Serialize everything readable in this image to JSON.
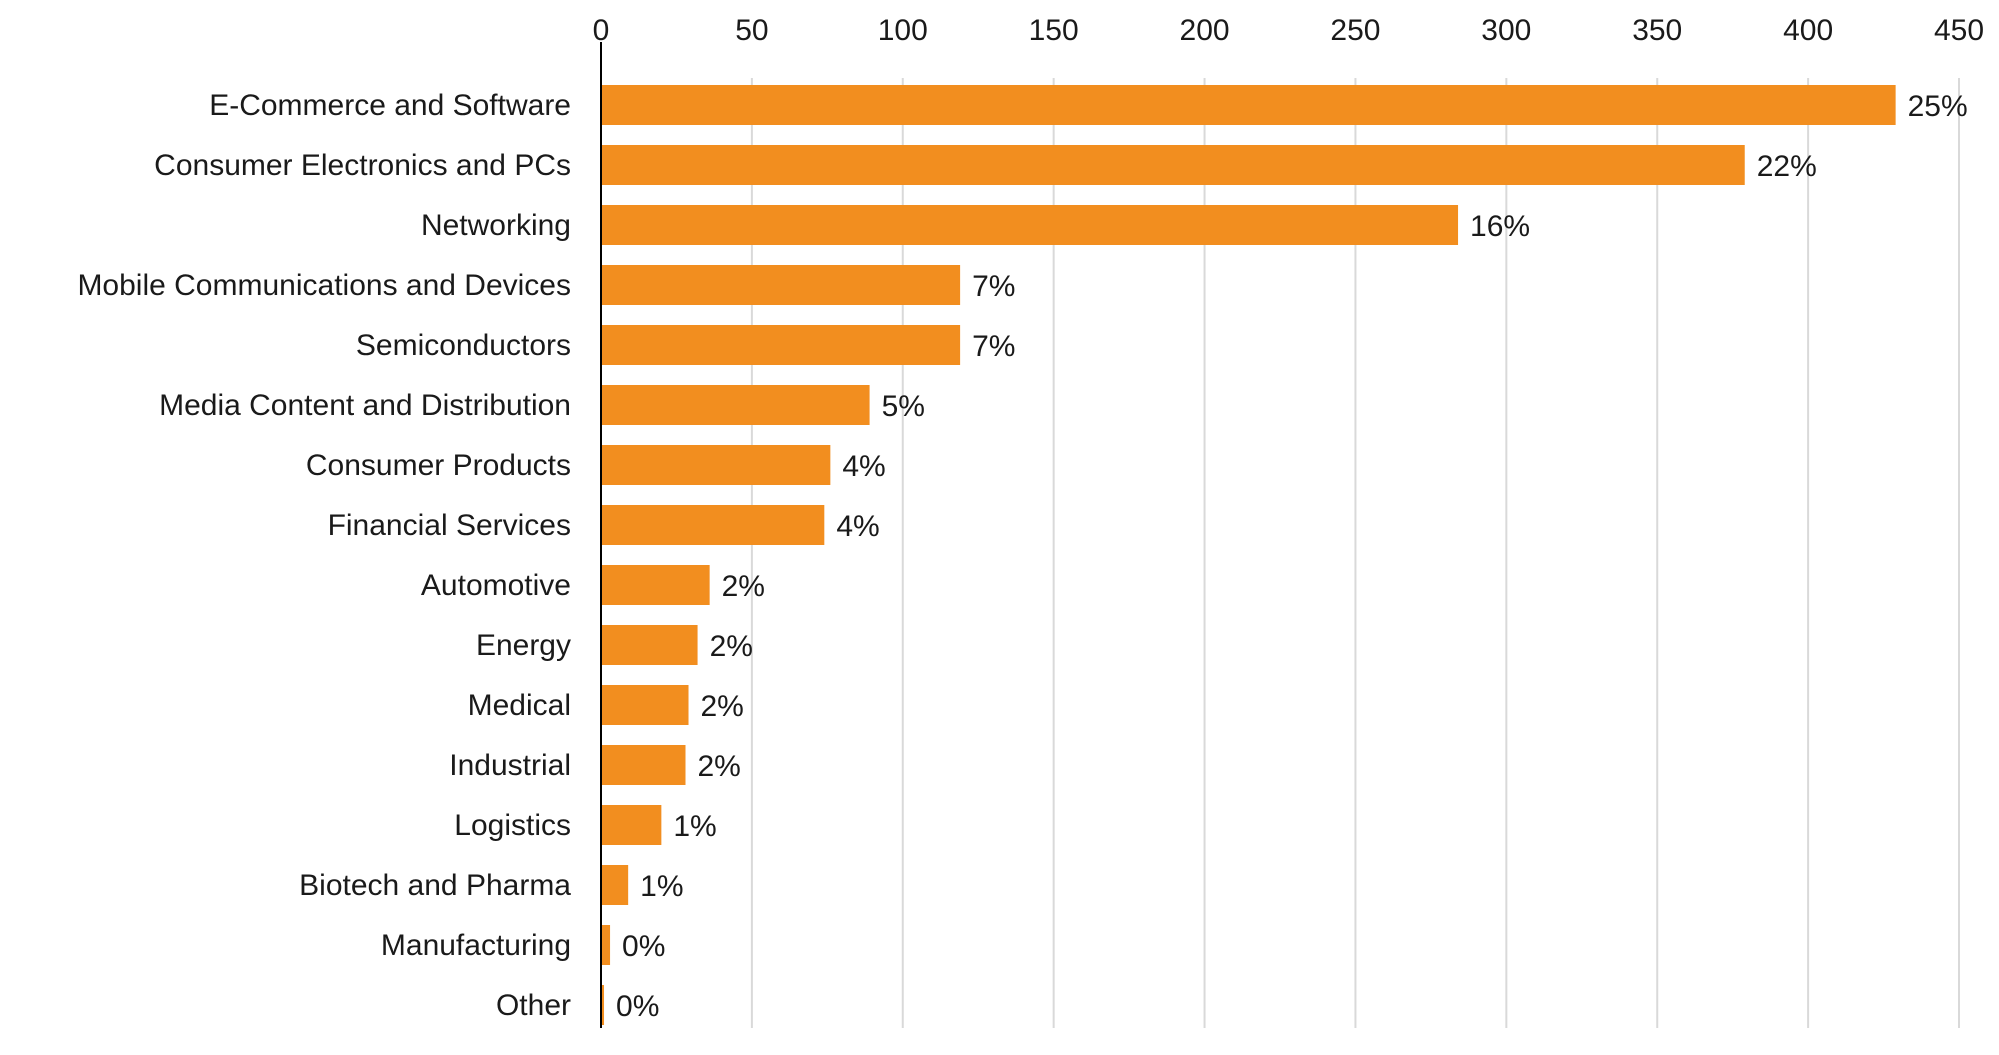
{
  "chart_data": {
    "type": "bar",
    "orientation": "horizontal",
    "title": "",
    "xlabel": "",
    "ylabel": "",
    "xlim": [
      0,
      450
    ],
    "x_ticks": [
      0,
      50,
      100,
      150,
      200,
      250,
      300,
      350,
      400,
      450
    ],
    "x_axis_position": "top",
    "grid": "vertical",
    "legend": "none",
    "bar_color": "#F28E1F",
    "categories": [
      "E-Commerce and Software",
      "Consumer Electronics and PCs",
      "Networking",
      "Mobile Communications and Devices",
      "Semiconductors",
      "Media Content and Distribution",
      "Consumer Products",
      "Financial Services",
      "Automotive",
      "Energy",
      "Medical",
      "Industrial",
      "Logistics",
      "Biotech and Pharma",
      "Manufacturing",
      "Other"
    ],
    "values": [
      429,
      379,
      284,
      119,
      119,
      89,
      76,
      74,
      36,
      32,
      29,
      28,
      20,
      9,
      3,
      1
    ],
    "data_labels": [
      "25%",
      "22%",
      "16%",
      "7%",
      "7%",
      "5%",
      "4%",
      "4%",
      "2%",
      "2%",
      "2%",
      "2%",
      "1%",
      "1%",
      "0%",
      "0%"
    ]
  }
}
